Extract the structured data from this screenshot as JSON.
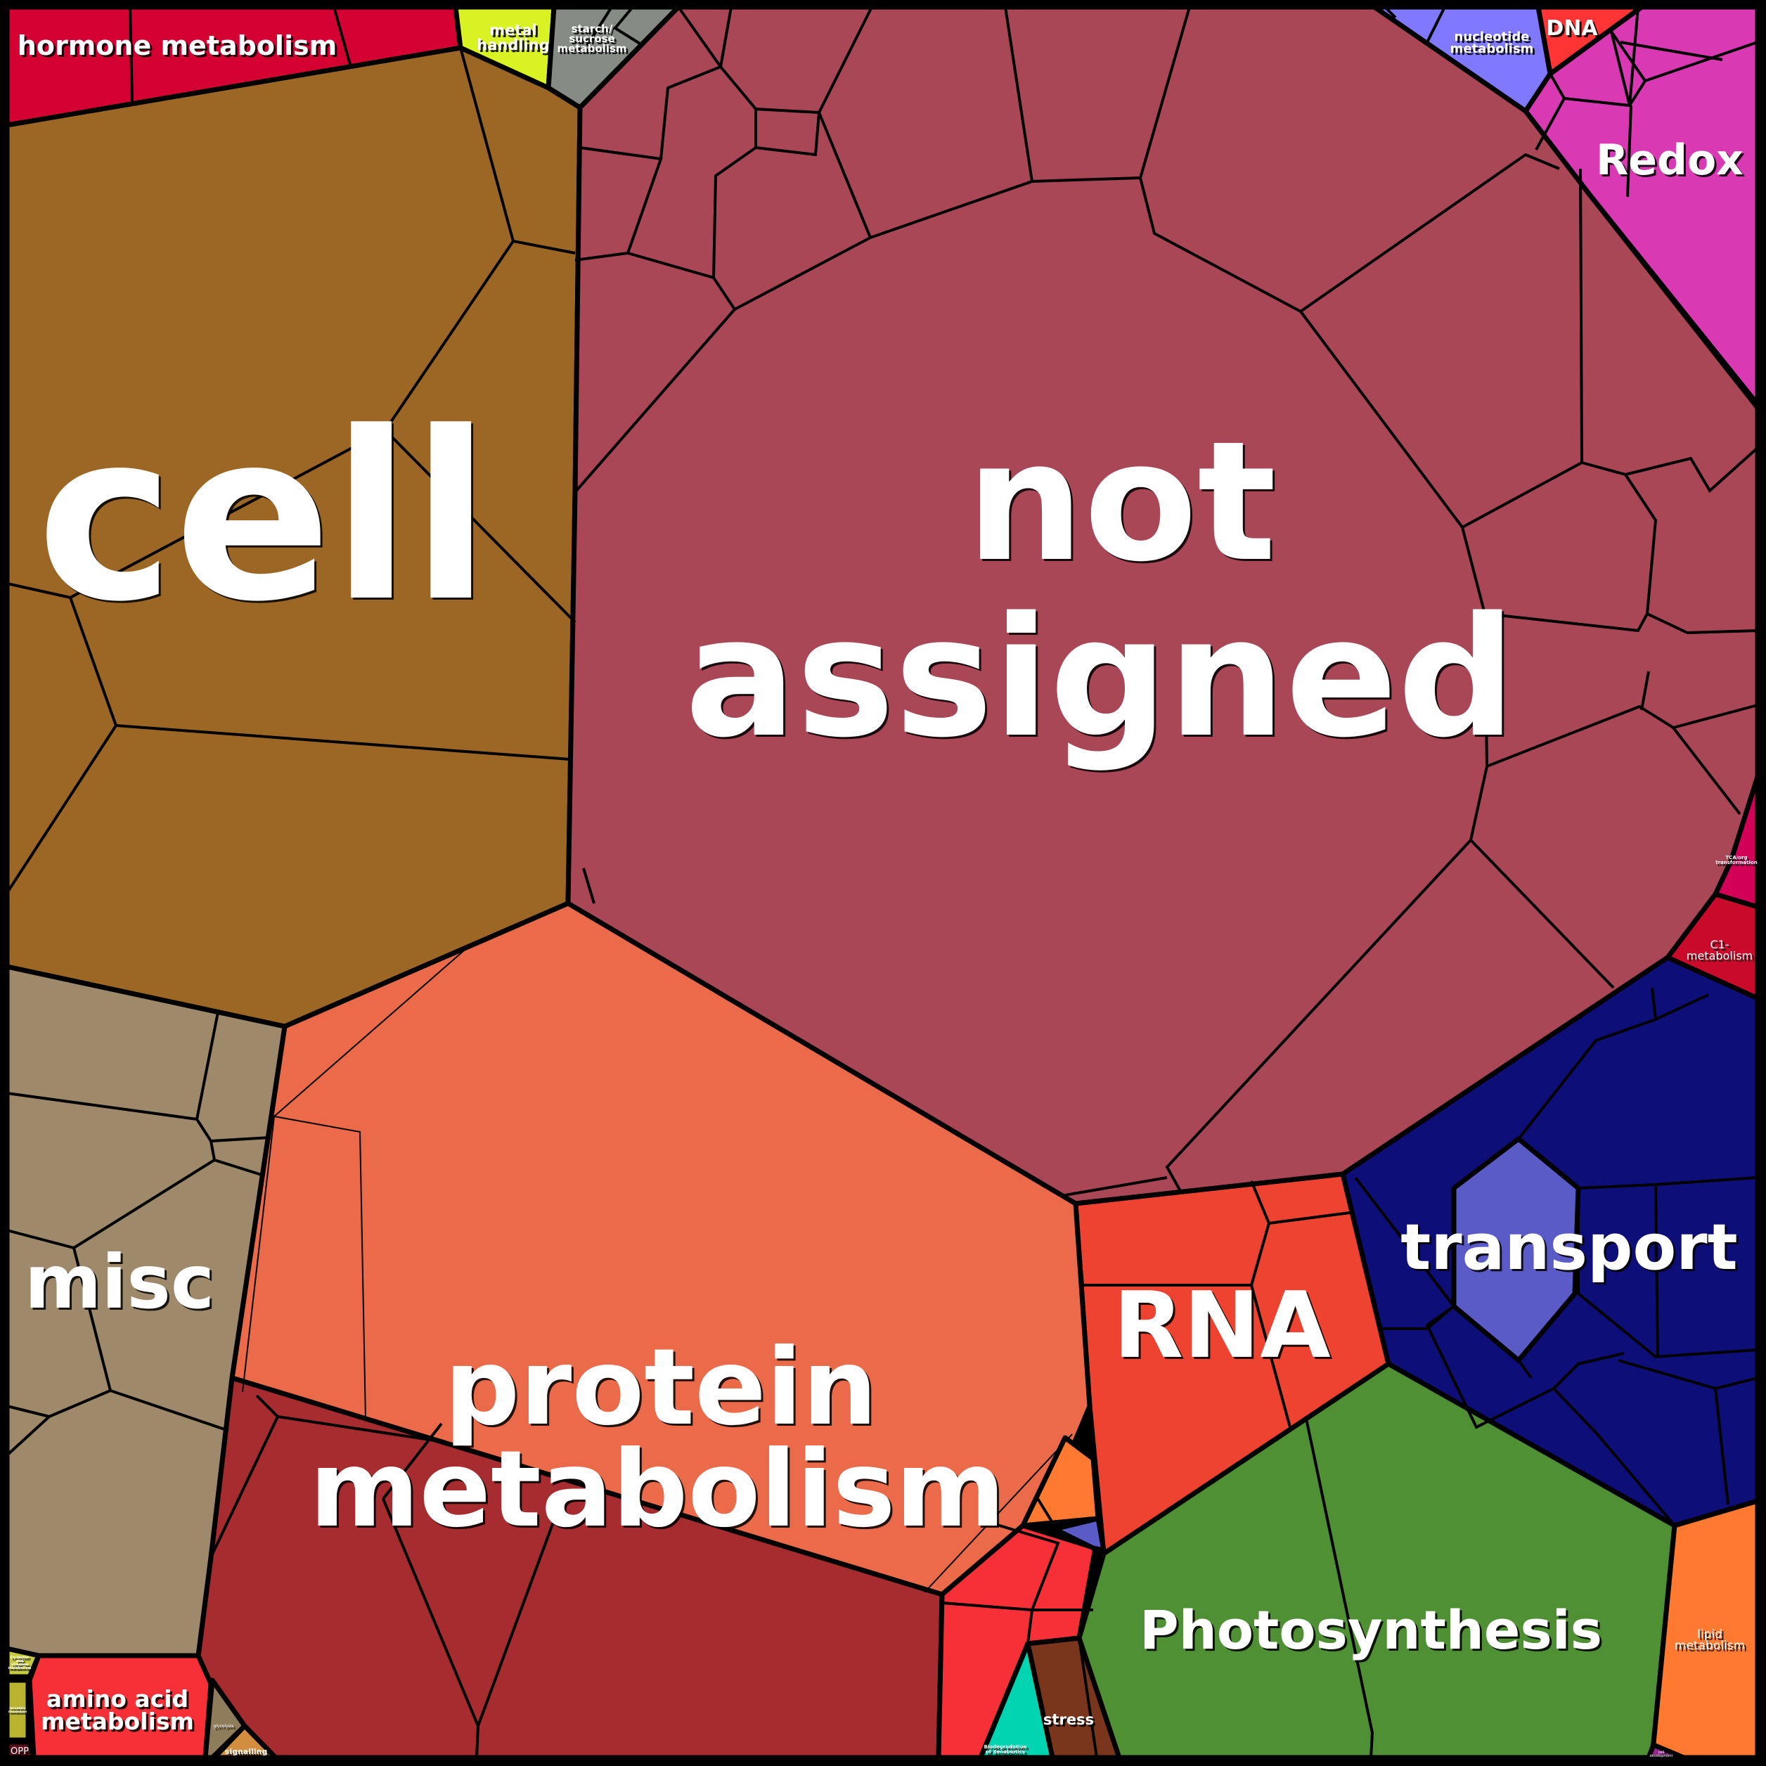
{
  "colors": {
    "hormone_metabolism": "#d40032",
    "metal_handling": "#d8f224",
    "starch_sucrose": "#868c85",
    "cell": "#9c6725",
    "not_assigned": "#aa4756",
    "redox": "#d93ab3",
    "dna": "#ff3535",
    "nucleotide": "#8078ff",
    "tca": "#d30058",
    "c1": "#c90a2a",
    "transport": "#0e0e78",
    "transport_inner": "#5b5bc8",
    "rna": "#ee4330",
    "protein": "#ea6a4a",
    "protein_dark": "#a62c2f",
    "misc": "#9e8a6b",
    "amino_acid": "#f73038",
    "cofactor": "#c7c93f",
    "secondary": "#b9b330",
    "opp": "#5a0e1a",
    "glycolysis": "#8f7c5b",
    "signalling": "#d38d3f",
    "stress": "#7a361c",
    "xenobiotics": "#00d4b0",
    "photosynthesis": "#4e9033",
    "lipid": "#ff7a30",
    "cell_development": "#952a8e"
  },
  "labels": {
    "hormone_metabolism": "hormone metabolism",
    "metal_handling": [
      "metal",
      "handling"
    ],
    "starch_sucrose": [
      "starch/",
      "sucrose",
      "metabolism"
    ],
    "cell": "cell",
    "not_assigned": [
      "not",
      "assigned"
    ],
    "nucleotide": [
      "nucleotide",
      "metabolism"
    ],
    "dna": "DNA",
    "redox": "Redox",
    "tca": [
      "TCA/org",
      "transformation"
    ],
    "c1": [
      "C1-",
      "metabolism"
    ],
    "transport": "transport",
    "rna": "RNA",
    "misc": "misc",
    "protein": [
      "protein",
      "metabolism"
    ],
    "photosynthesis": "Photosynthesis",
    "lipid": [
      "lipid",
      "metabolism"
    ],
    "stress": "stress",
    "xenobiotics": [
      "Biodegradation",
      "of Xenobiotics"
    ],
    "cell_development": [
      "cell",
      "development"
    ],
    "amino_acid": [
      "amino acid",
      "metabolism"
    ],
    "cofactor": [
      "Co-factor",
      "and",
      "vitamine",
      "metabolism"
    ],
    "secondary": [
      "secondary",
      "metabolism"
    ],
    "opp": "OPP",
    "glycolysis": "glycolysis",
    "signalling": "signalling"
  }
}
